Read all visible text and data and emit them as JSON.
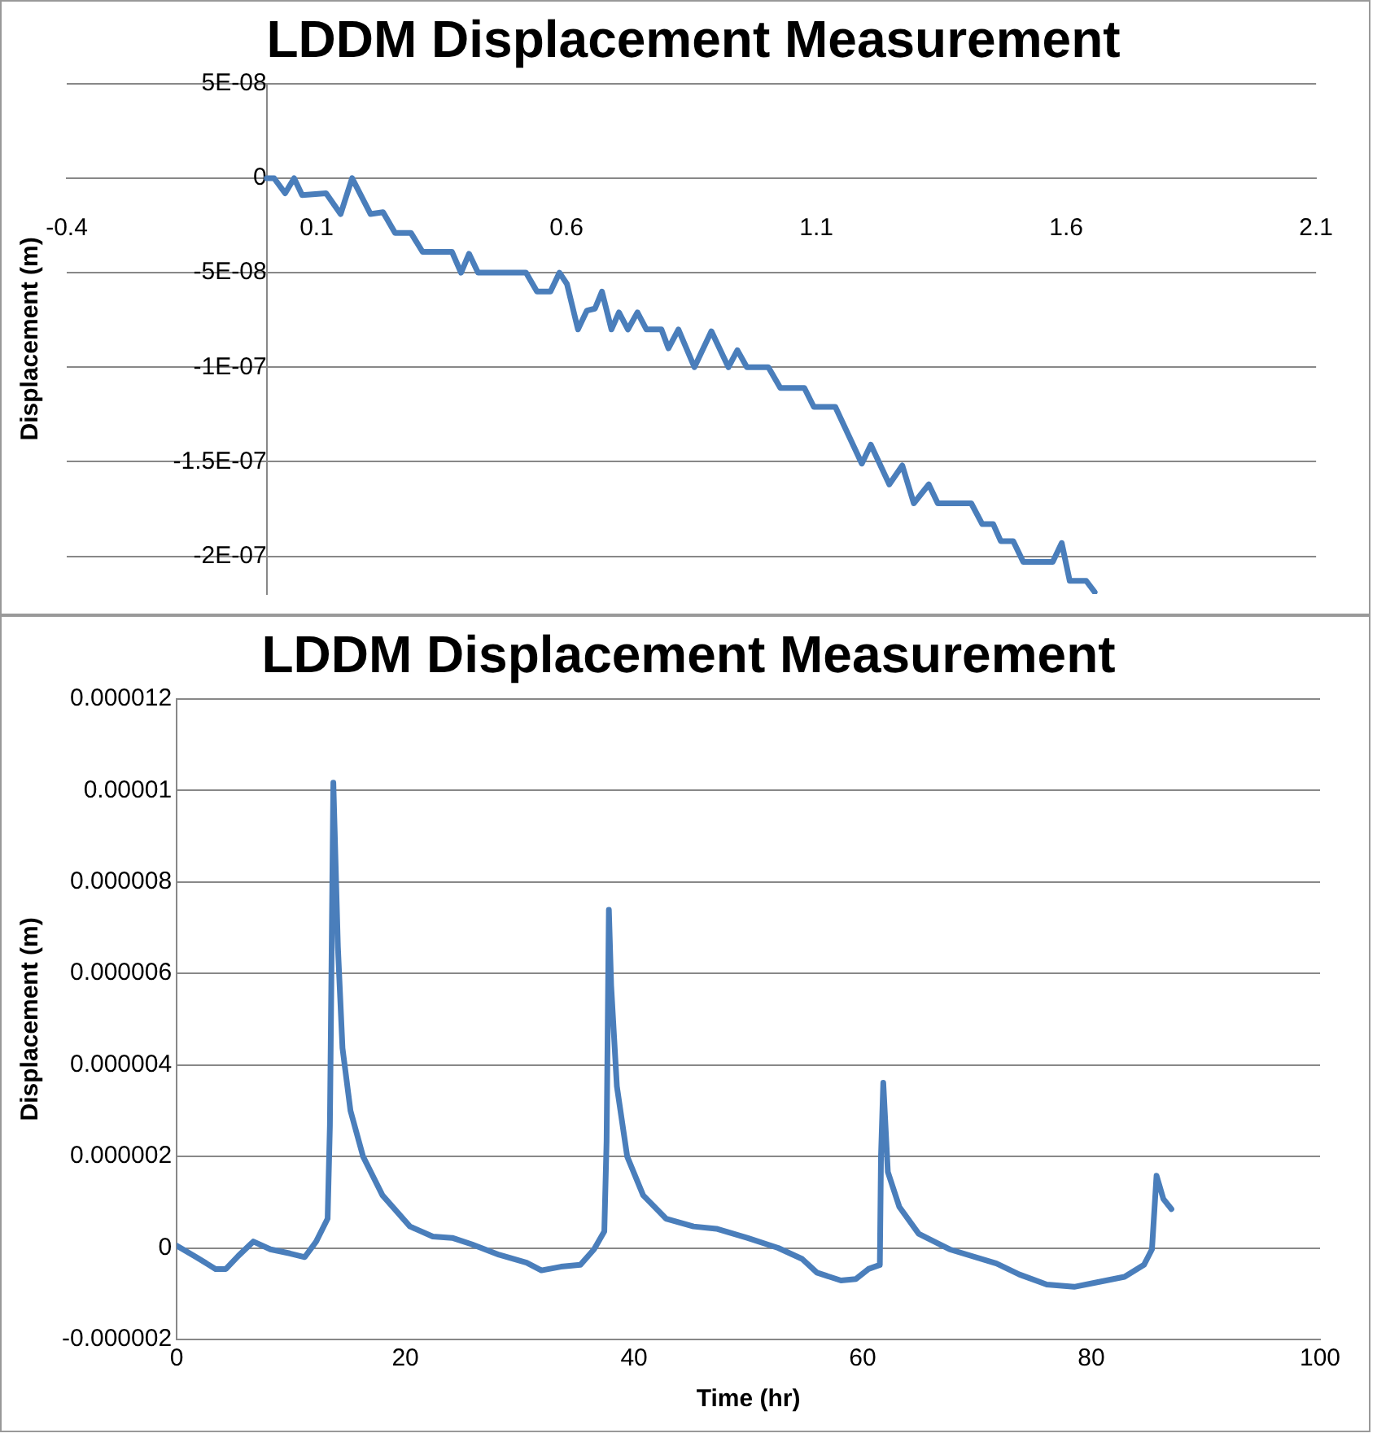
{
  "chart_data": [
    {
      "type": "line",
      "title": "LDDM Displacement Measurement",
      "ylabel": "Displacement (m)",
      "color": "#4a7ebb",
      "x": [
        0,
        0.015,
        0.037,
        0.055,
        0.071,
        0.119,
        0.148,
        0.171,
        0.208,
        0.233,
        0.257,
        0.289,
        0.312,
        0.371,
        0.389,
        0.405,
        0.423,
        0.519,
        0.541,
        0.568,
        0.586,
        0.601,
        0.623,
        0.641,
        0.657,
        0.671,
        0.69,
        0.705,
        0.723,
        0.742,
        0.76,
        0.79,
        0.804,
        0.824,
        0.856,
        0.89,
        0.924,
        0.942,
        0.961,
        1.004,
        1.028,
        1.076,
        1.095,
        1.138,
        1.191,
        1.209,
        1.246,
        1.272,
        1.295,
        1.325,
        1.343,
        1.41,
        1.432,
        1.454,
        1.469,
        1.494,
        1.514,
        1.573,
        1.591,
        1.607,
        1.64,
        1.657
      ],
      "values": [
        0,
        0,
        -8e-09,
        0,
        -9e-09,
        -8e-09,
        -1.9e-08,
        0,
        -1.9e-08,
        -1.8e-08,
        -2.9e-08,
        -2.9e-08,
        -3.9e-08,
        -3.9e-08,
        -5e-08,
        -4e-08,
        -5e-08,
        -5e-08,
        -6e-08,
        -6e-08,
        -5e-08,
        -5.6e-08,
        -8e-08,
        -7e-08,
        -6.9e-08,
        -6e-08,
        -8e-08,
        -7.1e-08,
        -8e-08,
        -7.1e-08,
        -8e-08,
        -8e-08,
        -9e-08,
        -8e-08,
        -1e-07,
        -8.1e-08,
        -1e-07,
        -9.1e-08,
        -1e-07,
        -1e-07,
        -1.11e-07,
        -1.11e-07,
        -1.21e-07,
        -1.21e-07,
        -1.51e-07,
        -1.41e-07,
        -1.62e-07,
        -1.52e-07,
        -1.72e-07,
        -1.62e-07,
        -1.72e-07,
        -1.72e-07,
        -1.83e-07,
        -1.83e-07,
        -1.92e-07,
        -1.92e-07,
        -2.03e-07,
        -2.03e-07,
        -1.93e-07,
        -2.13e-07,
        -2.13e-07,
        -2.19e-07
      ],
      "xlim": [
        -0.4,
        2.1
      ],
      "xticks": [
        -0.4,
        0.1,
        0.6,
        1.1,
        1.6,
        2.1
      ],
      "ylim": [
        -2.2e-07,
        5e-08
      ],
      "yticks": [
        {
          "value": 5e-08,
          "label": "5E-08"
        },
        {
          "value": 0,
          "label": "0"
        },
        {
          "value": -5e-08,
          "label": "-5E-08"
        },
        {
          "value": -1e-07,
          "label": "-1E-07"
        },
        {
          "value": -1.5e-07,
          "label": "-1.5E-07"
        },
        {
          "value": -2e-07,
          "label": "-2E-07"
        }
      ],
      "grid": "y",
      "legend": false,
      "marker": "none",
      "line_style": "solid"
    },
    {
      "type": "line",
      "title": "LDDM Displacement Measurement",
      "xlabel": "Time (hr)",
      "ylabel": "Displacement (m)",
      "color": "#4a7ebb",
      "x": [
        0,
        1.7,
        3.4,
        4.3,
        5.4,
        6.7,
        8.2,
        9.9,
        11.2,
        12.2,
        13.2,
        13.4,
        13.7,
        14.1,
        14.5,
        15.2,
        16.3,
        18,
        20.4,
        22.4,
        24.1,
        25.8,
        28.2,
        30.6,
        31.9,
        33.6,
        35.3,
        36.5,
        37.4,
        37.6,
        37.8,
        38,
        38.5,
        39.4,
        40.8,
        42.8,
        45.2,
        47.2,
        49.9,
        52.6,
        54.7,
        56,
        58.1,
        59.4,
        60.5,
        61.5,
        61.6,
        61.8,
        62.2,
        63.2,
        64.9,
        67.6,
        71.7,
        73.7,
        76.1,
        78.5,
        80.5,
        82.9,
        84.6,
        85.3,
        85.7,
        86.3,
        87
      ],
      "values": [
        5e-08,
        -2e-07,
        -4.6e-07,
        -4.6e-07,
        -1.7e-07,
        1.4e-07,
        -3e-08,
        -1.2e-07,
        -2e-07,
        1.4e-07,
        6.4e-07,
        2.68e-06,
        1.017e-05,
        6.58e-06,
        4.37e-06,
        3e-06,
        2e-06,
        1.15e-06,
        4.7e-07,
        2.5e-07,
        2.2e-07,
        8e-08,
        -1.5e-07,
        -3.2e-07,
        -4.9e-07,
        -4.1e-07,
        -3.7e-07,
        -3e-08,
        3.6e-07,
        2.34e-06,
        7.39e-06,
        5.73e-06,
        3.53e-06,
        2e-06,
        1.15e-06,
        6.4e-07,
        4.7e-07,
        4.2e-07,
        2.2e-07,
        0,
        -2.4e-07,
        -5.4e-07,
        -7.1e-07,
        -6.8e-07,
        -4.6e-07,
        -3.7e-07,
        2e-06,
        3.61e-06,
        1.66e-06,
        9e-07,
        3.1e-07,
        -3e-08,
        -3.4e-07,
        -5.8e-07,
        -8e-07,
        -8.5e-07,
        -7.5e-07,
        -6.3e-07,
        -3.7e-07,
        -3e-08,
        1.58e-06,
        1.07e-06,
        8.5e-07
      ],
      "xlim": [
        0,
        100
      ],
      "xticks": [
        0,
        20,
        40,
        60,
        80,
        100
      ],
      "ylim": [
        -2e-06,
        1.2e-05
      ],
      "yticks": [
        {
          "value": -2e-06,
          "label": "-0.000002"
        },
        {
          "value": 0,
          "label": "0"
        },
        {
          "value": 2e-06,
          "label": "0.000002"
        },
        {
          "value": 4e-06,
          "label": "0.000004"
        },
        {
          "value": 6e-06,
          "label": "0.000006"
        },
        {
          "value": 8e-06,
          "label": "0.000008"
        },
        {
          "value": 1e-05,
          "label": "0.00001"
        },
        {
          "value": 1.2e-05,
          "label": "0.000012"
        }
      ],
      "grid": "y",
      "legend": false,
      "marker": "none",
      "line_style": "solid"
    }
  ]
}
